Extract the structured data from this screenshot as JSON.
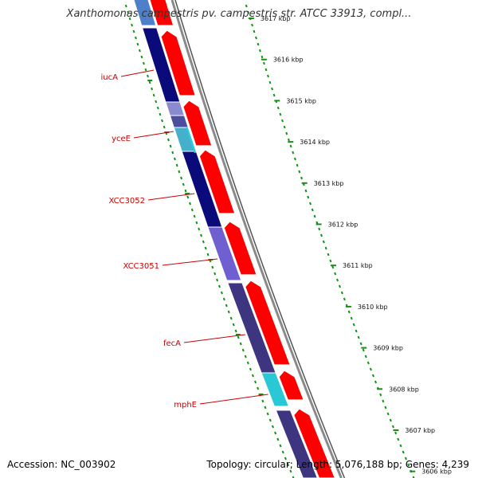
{
  "title": "Xanthomonas campestris pv. campestris str. ATCC 33913, compl...",
  "footer": {
    "accession": "Accession: NC_003902",
    "summary": "Topology: circular; Length: 5,076,188 bp; Genes: 4,239"
  },
  "kbp_ticks": [
    "3617 kbp",
    "3616 kbp",
    "3615 kbp",
    "3614 kbp",
    "3613 kbp",
    "3612 kbp",
    "3611 kbp",
    "3610 kbp",
    "3609 kbp",
    "3608 kbp",
    "3607 kbp",
    "3606 kbp"
  ],
  "gene_labels": [
    "iucA",
    "yceE",
    "XCC3052",
    "XCC3051",
    "fecA",
    "mphE"
  ],
  "colors": {
    "forward_feature": "#ff0000",
    "backbone": "#777777",
    "tick": "#1a8c1a",
    "label": "#cc0000"
  }
}
